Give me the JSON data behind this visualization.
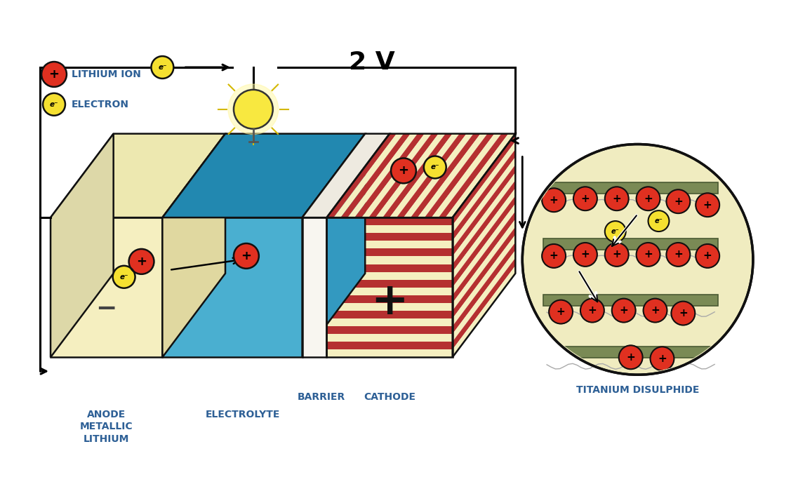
{
  "bg_color": "#ffffff",
  "text_color_blue": "#2E6096",
  "ion_color_red": "#E03020",
  "ion_color_yellow": "#F5E030",
  "ion_border": "#111111",
  "anode_face": "#F5EFC0",
  "anode_top": "#EDE8B0",
  "anode_side": "#E0D8A0",
  "elec_front": "#4AAFD0",
  "elec_top": "#2288B0",
  "elec_side": "#3399C0",
  "barrier_color": "#F8F6F0",
  "cathode_red": "#B53030",
  "cathode_cream": "#F5EFC0",
  "tds_bg": "#F0ECC0",
  "tds_layer": "#7A8A55",
  "voltage_text": "2 V",
  "label_fontsize": 10,
  "voltage_fontsize": 26,
  "labels": {
    "lithium_ion": "LITHIUM ION",
    "electron": "ELECTRON",
    "anode": "ANODE\nMETALLIC\nLITHIUM",
    "barrier": "BARRIER",
    "electrolyte": "ELECTROLYTE",
    "cathode": "CATHODE",
    "titanium": "TITANIUM DISULPHIDE"
  }
}
